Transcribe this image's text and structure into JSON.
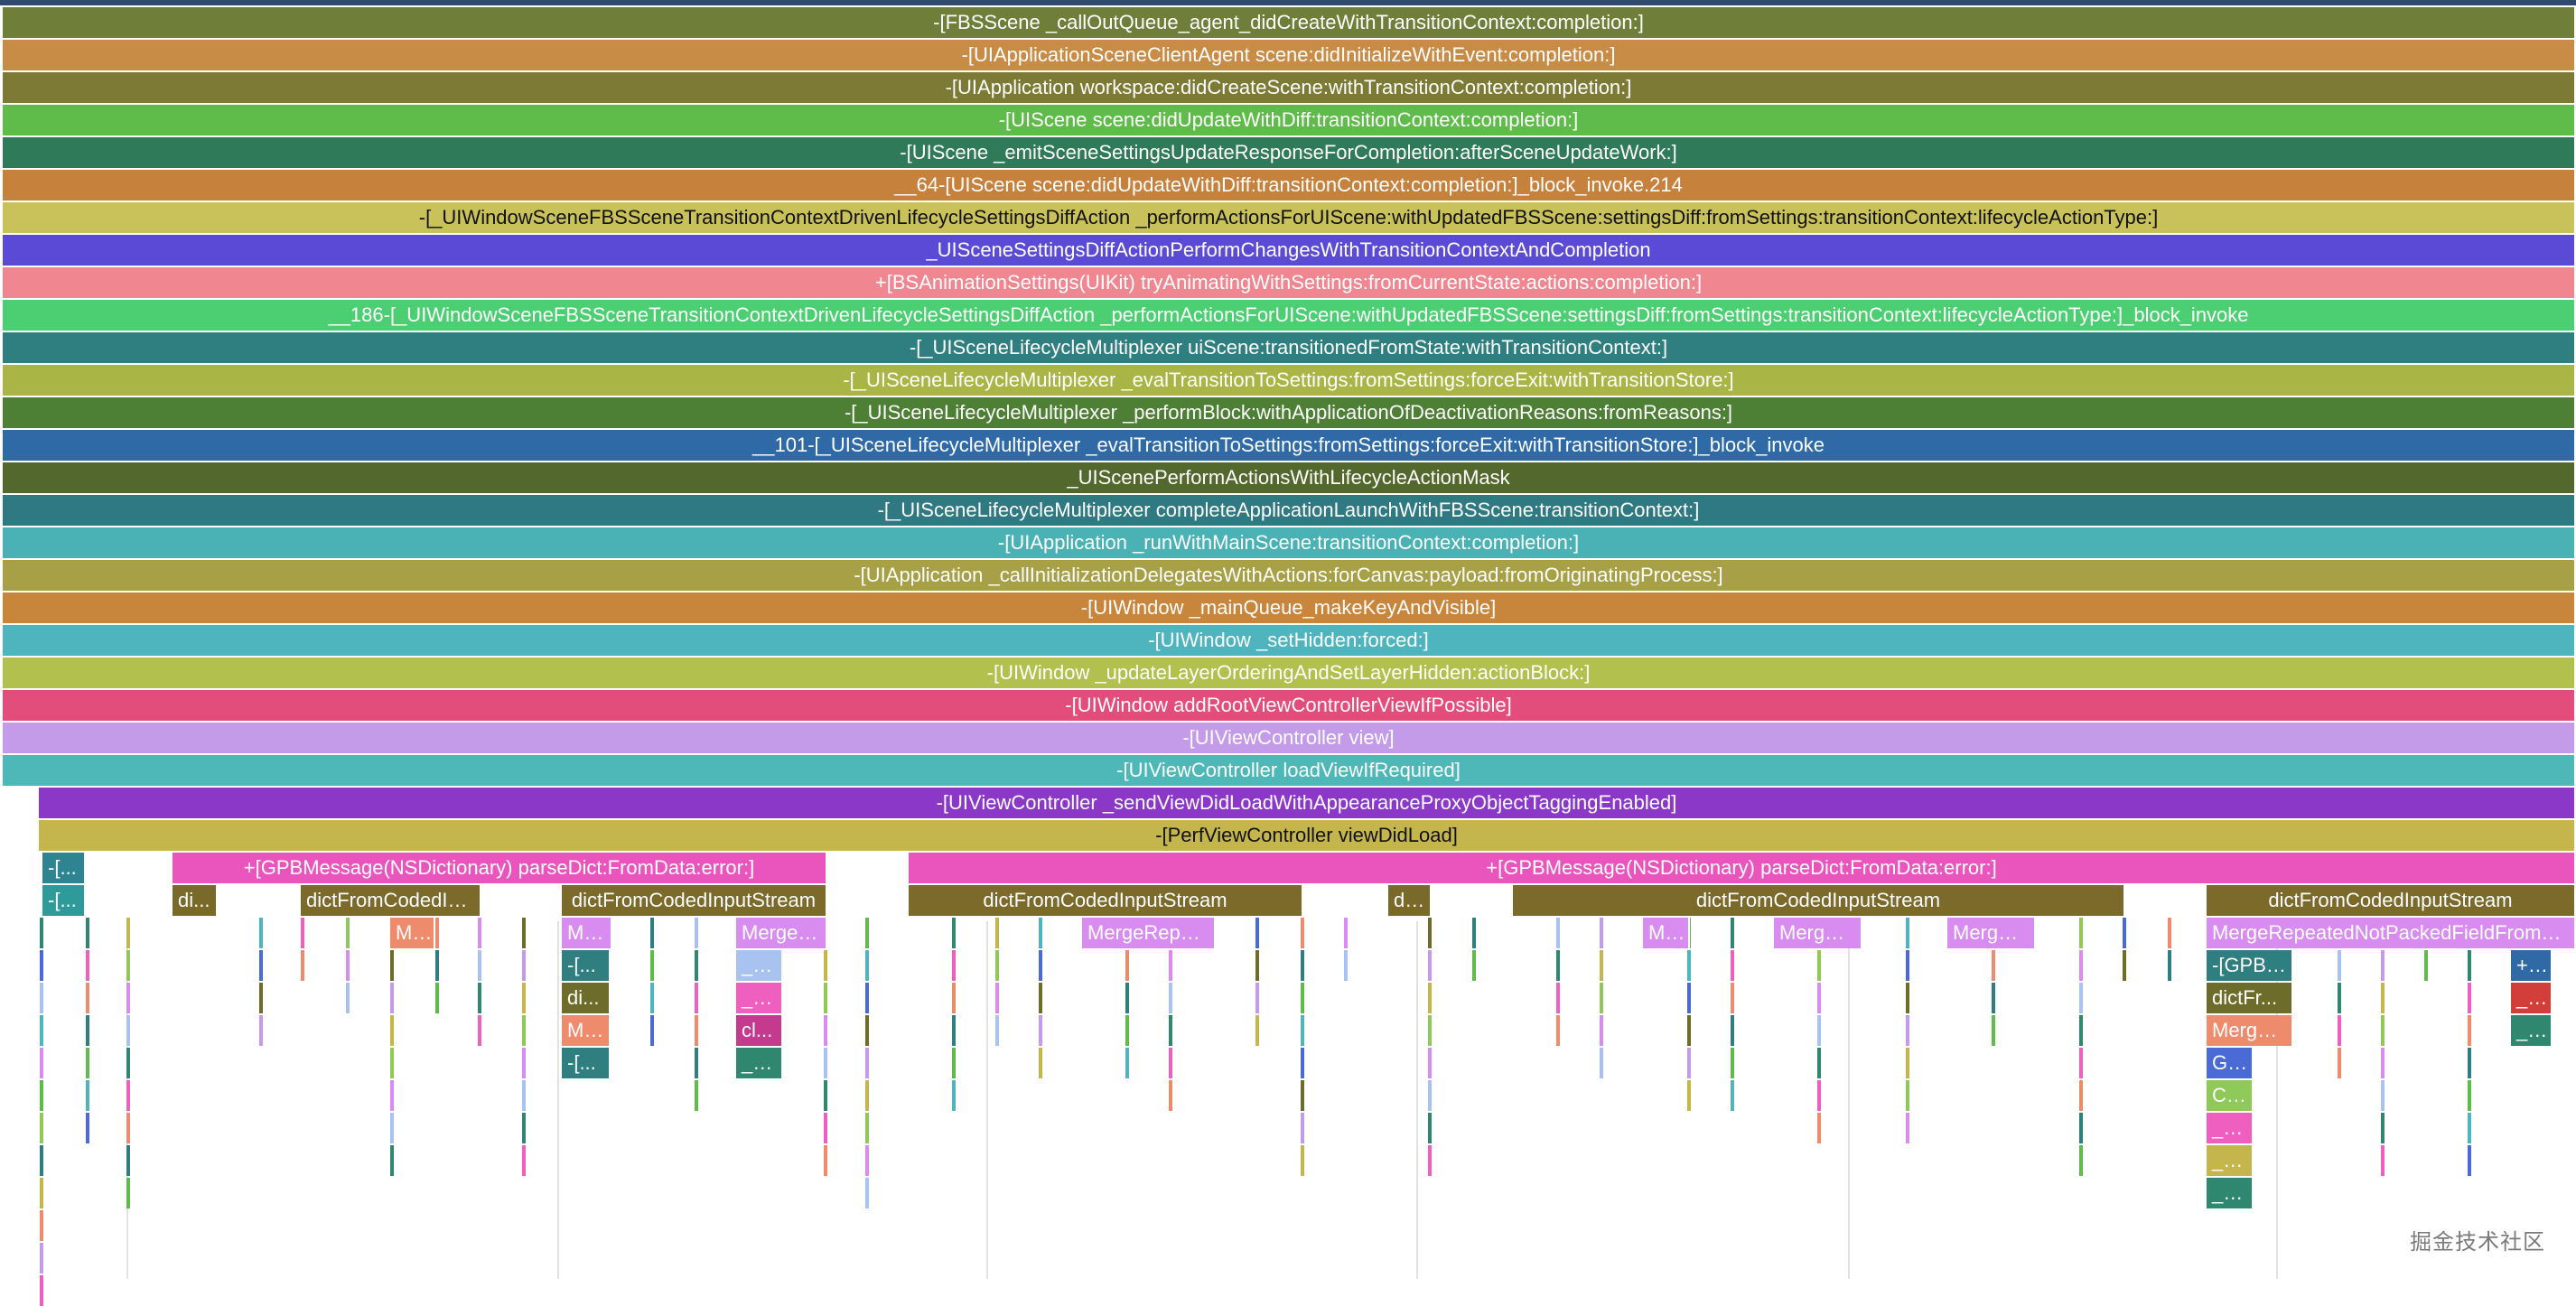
{
  "watermark": "掘金技术社区",
  "frames": [
    {
      "label": "-[FBSScene _callOutQueue_agent_didCreateWithTransitionContext:completion:]",
      "color": "#6f7f39"
    },
    {
      "label": "-[UIApplicationSceneClientAgent scene:didInitializeWithEvent:completion:]",
      "color": "#c98c46"
    },
    {
      "label": "-[UIApplication workspace:didCreateScene:withTransitionContext:completion:]",
      "color": "#7c7a34"
    },
    {
      "label": "-[UIScene scene:didUpdateWithDiff:transitionContext:completion:]",
      "color": "#5fbb4a"
    },
    {
      "label": "-[UIScene _emitSceneSettingsUpdateResponseForCompletion:afterSceneUpdateWork:]",
      "color": "#2f7a58"
    },
    {
      "label": "__64-[UIScene scene:didUpdateWithDiff:transitionContext:completion:]_block_invoke.214",
      "color": "#c6823d"
    },
    {
      "label": "-[_UIWindowSceneFBSSceneTransitionContextDrivenLifecycleSettingsDiffAction _performActionsForUIScene:withUpdatedFBSScene:settingsDiff:fromSettings:transitionContext:lifecycleActionType:]",
      "color": "#c9c15a",
      "dark": true
    },
    {
      "label": "_UISceneSettingsDiffActionPerformChangesWithTransitionContextAndCompletion",
      "color": "#5b4ad6"
    },
    {
      "label": "+[BSAnimationSettings(UIKit) tryAnimatingWithSettings:fromCurrentState:actions:completion:]",
      "color": "#ef8690"
    },
    {
      "label": "__186-[_UIWindowSceneFBSSceneTransitionContextDrivenLifecycleSettingsDiffAction _performActionsForUIScene:withUpdatedFBSScene:settingsDiff:fromSettings:transitionContext:lifecycleActionType:]_block_invoke",
      "color": "#4ccf73"
    },
    {
      "label": "-[_UISceneLifecycleMultiplexer uiScene:transitionedFromState:withTransitionContext:]",
      "color": "#2f7e80"
    },
    {
      "label": "-[_UISceneLifecycleMultiplexer _evalTransitionToSettings:fromSettings:forceExit:withTransitionStore:]",
      "color": "#a9b544"
    },
    {
      "label": "-[_UISceneLifecycleMultiplexer _performBlock:withApplicationOfDeactivationReasons:fromReasons:]",
      "color": "#4d7f34"
    },
    {
      "label": "__101-[_UISceneLifecycleMultiplexer _evalTransitionToSettings:fromSettings:forceExit:withTransitionStore:]_block_invoke",
      "color": "#2f6aa6"
    },
    {
      "label": "_UIScenePerformActionsWithLifecycleActionMask",
      "color": "#53682d"
    },
    {
      "label": "-[_UISceneLifecycleMultiplexer completeApplicationLaunchWithFBSScene:transitionContext:]",
      "color": "#2f7a82"
    },
    {
      "label": "-[UIApplication _runWithMainScene:transitionContext:completion:]",
      "color": "#4ab2b4"
    },
    {
      "label": "-[UIApplication _callInitializationDelegatesWithActions:forCanvas:payload:fromOriginatingProcess:]",
      "color": "#a8a046"
    },
    {
      "label": "-[UIWindow _mainQueue_makeKeyAndVisible]",
      "color": "#c8853c"
    },
    {
      "label": "-[UIWindow _setHidden:forced:]",
      "color": "#4eb5bf"
    },
    {
      "label": "-[UIWindow _updateLayerOrderingAndSetLayerHidden:actionBlock:]",
      "color": "#b2c04e"
    },
    {
      "label": "-[UIWindow addRootViewControllerViewIfPossible]",
      "color": "#e34d7c"
    },
    {
      "label": "-[UIViewController view]",
      "color": "#c49be8"
    },
    {
      "label": "-[UIViewController loadViewIfRequired]",
      "color": "#4eb7b8"
    },
    {
      "label": "-[UIViewController _sendViewDidLoadWithAppearanceProxyObjectTaggingEnabled]",
      "color": "#8b38c9"
    },
    {
      "label": "-[PerfViewController viewDidLoad]",
      "color": "#c4b54d",
      "dark": true
    },
    {
      "label": "+[GPBMessage(NSDictionary) parseDict:FromData:error:]",
      "color": "#ea55bd"
    },
    {
      "label": "+[GPBMessage(NSDictionary) parseDict:FromData:error:]",
      "color": "#ea55bd"
    },
    {
      "label": "-[...",
      "color": "#2f8492"
    },
    {
      "label": "-[...",
      "color": "#2f9a9a"
    },
    {
      "label": "di...",
      "color": "#7a6a2a"
    },
    {
      "label": "dictFromCodedIn...",
      "color": "#7c6a2b"
    },
    {
      "label": "dictFromCodedInputStream",
      "color": "#7c6a2b"
    },
    {
      "label": "dictFromCodedInputStream",
      "color": "#7c6a2b"
    },
    {
      "label": "di...",
      "color": "#7a6a2a"
    },
    {
      "label": "dictFromCodedInputStream",
      "color": "#7c6a2b"
    },
    {
      "label": "dictFromCodedInputStream",
      "color": "#7c6a2b"
    },
    {
      "label": "Me...",
      "color": "#ef8b6d"
    },
    {
      "label": "Me...",
      "color": "#d88cf0"
    },
    {
      "label": "MergeR...",
      "color": "#d88cf0"
    },
    {
      "label": "MergeRepea...",
      "color": "#d88cf0"
    },
    {
      "label": "Me...",
      "color": "#d88cf0"
    },
    {
      "label": "MergeR...",
      "color": "#d88cf0"
    },
    {
      "label": "MergeR...",
      "color": "#d88cf0"
    },
    {
      "label": "MergeRepeatedNotPackedFieldFromCo...",
      "color": "#d88cf0"
    },
    {
      "label": "-[...",
      "color": "#2f7e80"
    },
    {
      "label": "di...",
      "color": "#6d6c2a"
    },
    {
      "label": "Me...",
      "color": "#ef8b6d"
    },
    {
      "label": "-[...",
      "color": "#2f7e80"
    },
    {
      "label": "__...",
      "color": "#a8c3ef"
    },
    {
      "label": "__...",
      "color": "#ef5fc0"
    },
    {
      "label": "cl...",
      "color": "#c43a8e"
    },
    {
      "label": "_m...",
      "color": "#2f8770"
    },
    {
      "label": "-[GPBC...",
      "color": "#2f7e80"
    },
    {
      "label": "dictFr...",
      "color": "#6d6c2a"
    },
    {
      "label": "MergeS...",
      "color": "#ef8b6d"
    },
    {
      "label": "GP...",
      "color": "#4a6ad6"
    },
    {
      "label": "CF...",
      "color": "#8ec95a"
    },
    {
      "label": "__...",
      "color": "#ef5fc0"
    },
    {
      "label": "_C...",
      "color": "#c4b54d"
    },
    {
      "label": "_m...",
      "color": "#2f8770"
    },
    {
      "label": "+[...",
      "color": "#2f6aa6"
    },
    {
      "label": "__...",
      "color": "#d23f3a"
    },
    {
      "label": "_m...",
      "color": "#2f8770"
    }
  ],
  "strip_colors": [
    "#2f8770",
    "#c4b54d",
    "#4eb5bf",
    "#ef5fc0",
    "#8ec95a",
    "#4a6ad6",
    "#ef8b6d",
    "#d88cf0",
    "#6d6c2a",
    "#2f7e80",
    "#a8c3ef",
    "#c49be8",
    "#5fbb4a"
  ]
}
